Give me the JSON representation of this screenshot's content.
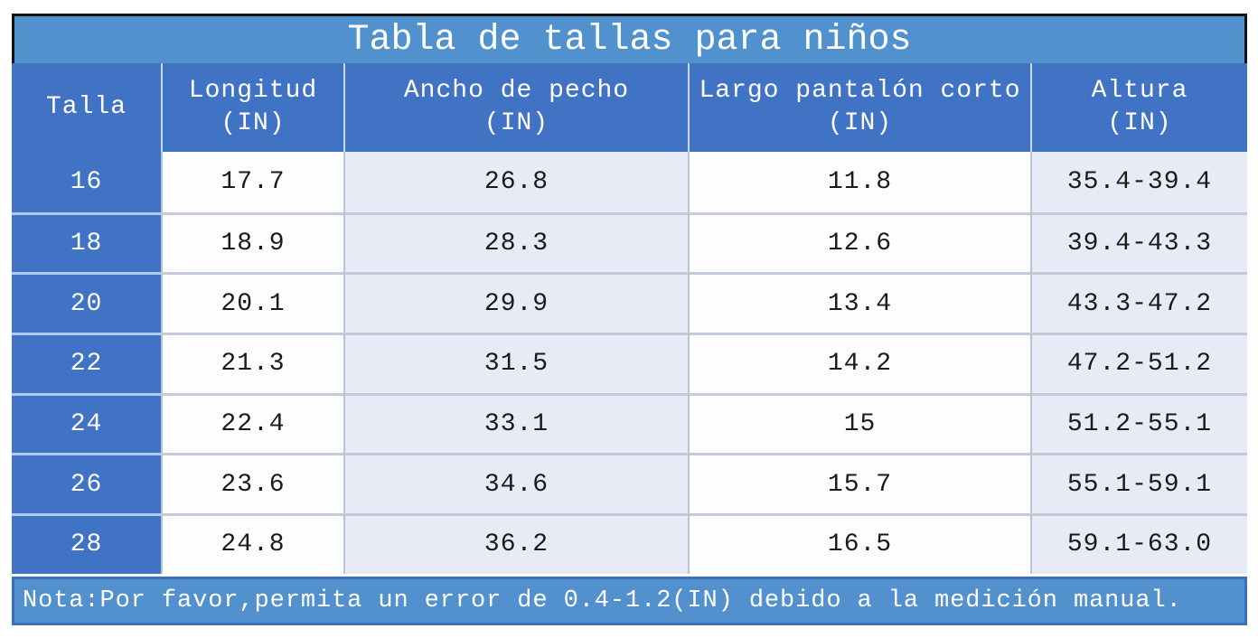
{
  "chart_data": {
    "type": "table",
    "title": "Tabla de tallas para niños",
    "columns": [
      {
        "label": "Talla",
        "unit": ""
      },
      {
        "label": "Longitud",
        "unit": "(IN)"
      },
      {
        "label": "Ancho de pecho",
        "unit": "(IN)"
      },
      {
        "label": "Largo pantalón corto",
        "unit": "(IN)"
      },
      {
        "label": "Altura",
        "unit": "(IN)"
      }
    ],
    "rows": [
      [
        "16",
        "17.7",
        "26.8",
        "11.8",
        "35.4-39.4"
      ],
      [
        "18",
        "18.9",
        "28.3",
        "12.6",
        "39.4-43.3"
      ],
      [
        "20",
        "20.1",
        "29.9",
        "13.4",
        "43.3-47.2"
      ],
      [
        "22",
        "21.3",
        "31.5",
        "14.2",
        "47.2-51.2"
      ],
      [
        "24",
        "22.4",
        "33.1",
        "15",
        "51.2-55.1"
      ],
      [
        "26",
        "23.6",
        "34.6",
        "15.7",
        "55.1-59.1"
      ],
      [
        "28",
        "24.8",
        "36.2",
        "16.5",
        "59.1-63.0"
      ]
    ],
    "note": "Nota:Por favor,permita un error de 0.4-1.2(IN) debido a la medición manual.",
    "layout_hints": {
      "row_label_column": "Talla",
      "units": "IN",
      "striped_columns": true
    }
  },
  "colors": {
    "title_bar": "#5191CE",
    "header": "#4173C5",
    "col_white": "#FDFDFE",
    "col_tint": "#E7EBF6",
    "note_fill": "#5390CE",
    "note_border": "#3E6FBC",
    "frame": "#131313",
    "text_dark": "#1A1A1A",
    "text_light": "#FFFFFF"
  }
}
